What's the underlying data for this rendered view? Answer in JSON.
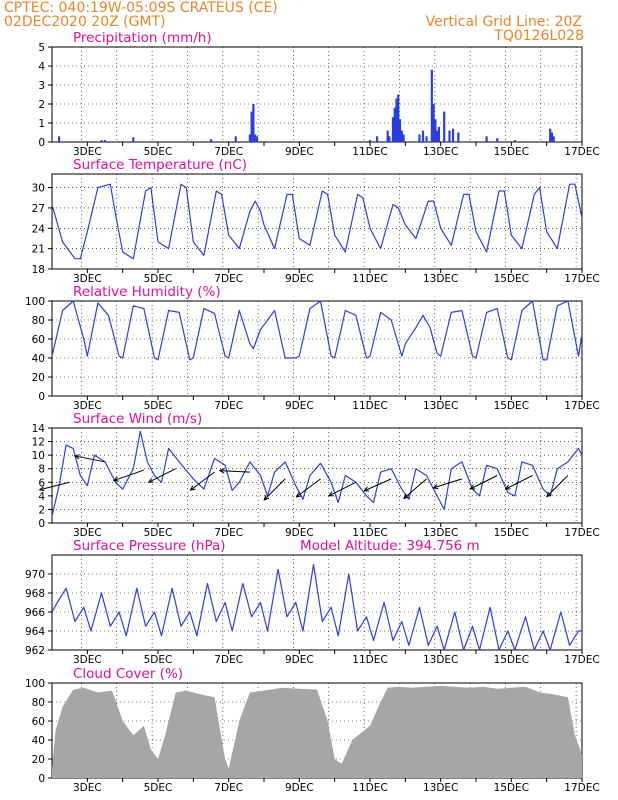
{
  "header": {
    "line1": "CPTEC:   040:19W-05:09S   CRATEUS (CE)",
    "line2": "02DEC2020 20Z (GMT)",
    "right1": "Vertical Grid Line: 20Z",
    "right2": "TQ0126L028"
  },
  "colors": {
    "header": "#e8862a",
    "title": "#e0109a",
    "line": "#2b3fe0",
    "cloud": "#a6a6a6"
  },
  "x_tick_labels": [
    "3DEC",
    "5DEC",
    "7DEC",
    "9DEC",
    "11DEC",
    "13DEC",
    "15DEC",
    "17DEC"
  ],
  "chart_data": [
    {
      "type": "bar",
      "title": "Precipitation (mm/h)",
      "ylim": [
        0,
        5
      ],
      "y_ticks": [
        0,
        1,
        2,
        3,
        4,
        5
      ],
      "x_unit": "day of December 2020",
      "xlim": [
        2.0,
        17.0
      ],
      "x": [
        2.2,
        3.4,
        3.5,
        4.3,
        6.5,
        7.2,
        7.6,
        7.65,
        7.7,
        7.75,
        7.8,
        11.0,
        11.2,
        11.5,
        11.55,
        11.65,
        11.7,
        11.75,
        11.8,
        11.85,
        11.9,
        11.95,
        12.4,
        12.5,
        12.6,
        12.75,
        12.8,
        12.85,
        12.9,
        12.95,
        13.1,
        13.25,
        13.35,
        13.5,
        14.3,
        14.6,
        15.1,
        16.1,
        16.15,
        16.2
      ],
      "values": [
        0.3,
        0.1,
        0.1,
        0.25,
        0.15,
        0.3,
        0.4,
        1.6,
        2.0,
        0.4,
        0.3,
        0.1,
        0.3,
        0.6,
        0.3,
        1.3,
        1.8,
        2.3,
        2.5,
        1.2,
        0.6,
        0.4,
        0.4,
        0.6,
        0.3,
        3.8,
        2.0,
        1.2,
        0.6,
        0.8,
        1.6,
        0.6,
        0.7,
        0.5,
        0.3,
        0.2,
        0.1,
        0.7,
        0.5,
        0.3
      ]
    },
    {
      "type": "line",
      "title": "Surface Temperature (nC)",
      "ylim": [
        18,
        32
      ],
      "y_ticks": [
        18,
        21,
        24,
        27,
        30
      ],
      "xlim": [
        2.0,
        17.0
      ],
      "x": [
        2.0,
        2.3,
        2.65,
        2.8,
        3.0,
        3.3,
        3.65,
        3.8,
        4.0,
        4.3,
        4.65,
        4.8,
        5.0,
        5.3,
        5.65,
        5.8,
        6.0,
        6.3,
        6.65,
        6.8,
        7.0,
        7.3,
        7.6,
        7.75,
        7.9,
        8.0,
        8.3,
        8.65,
        8.8,
        9.0,
        9.3,
        9.65,
        9.8,
        10.0,
        10.3,
        10.65,
        10.8,
        11.0,
        11.3,
        11.65,
        11.8,
        12.0,
        12.3,
        12.65,
        12.8,
        13.0,
        13.3,
        13.65,
        13.8,
        14.0,
        14.3,
        14.65,
        14.8,
        15.0,
        15.3,
        15.65,
        15.8,
        16.0,
        16.3,
        16.65,
        16.8,
        17.0
      ],
      "values": [
        27.5,
        22.0,
        19.5,
        19.5,
        23.5,
        30.0,
        30.5,
        26.0,
        20.5,
        19.5,
        29.5,
        30.0,
        22.0,
        21.0,
        30.5,
        30.0,
        22.0,
        20.0,
        29.5,
        29.0,
        23.0,
        21.0,
        26.5,
        28.0,
        26.5,
        24.5,
        21.0,
        29.0,
        29.0,
        22.5,
        21.5,
        29.5,
        29.0,
        23.0,
        20.5,
        29.0,
        28.5,
        24.0,
        21.0,
        27.5,
        27.0,
        24.5,
        22.5,
        28.0,
        28.0,
        24.0,
        21.5,
        29.0,
        29.0,
        23.5,
        20.5,
        29.5,
        29.5,
        23.0,
        21.0,
        29.0,
        30.0,
        23.5,
        21.0,
        30.5,
        30.5,
        25.5
      ]
    },
    {
      "type": "line",
      "title": "Relative Humidity (%)",
      "ylim": [
        0,
        100
      ],
      "y_ticks": [
        0,
        20,
        40,
        60,
        80,
        100
      ],
      "xlim": [
        2.0,
        17.0
      ],
      "x": [
        2.0,
        2.3,
        2.6,
        2.9,
        3.0,
        3.3,
        3.6,
        3.9,
        4.0,
        4.3,
        4.6,
        4.9,
        5.0,
        5.3,
        5.6,
        5.9,
        6.0,
        6.3,
        6.6,
        6.9,
        7.0,
        7.3,
        7.6,
        7.7,
        7.9,
        8.0,
        8.3,
        8.6,
        8.9,
        9.0,
        9.3,
        9.6,
        9.9,
        10.0,
        10.3,
        10.6,
        10.9,
        11.0,
        11.3,
        11.6,
        11.9,
        12.0,
        12.3,
        12.5,
        12.7,
        12.9,
        13.0,
        13.3,
        13.6,
        13.9,
        14.0,
        14.3,
        14.6,
        14.9,
        15.0,
        15.3,
        15.6,
        15.9,
        16.0,
        16.3,
        16.6,
        16.9,
        17.0
      ],
      "values": [
        42.0,
        90.0,
        100.0,
        60.0,
        42.0,
        98.0,
        85.0,
        42.0,
        40.0,
        95.0,
        92.0,
        40.0,
        38.0,
        90.0,
        88.0,
        38.0,
        40.0,
        92.0,
        87.0,
        42.0,
        40.0,
        90.0,
        55.0,
        50.0,
        70.0,
        75.0,
        90.0,
        40.0,
        40.0,
        42.0,
        92.0,
        100.0,
        42.0,
        40.0,
        90.0,
        85.0,
        40.0,
        42.0,
        88.0,
        80.0,
        42.0,
        55.0,
        72.0,
        85.0,
        72.0,
        45.0,
        42.0,
        88.0,
        90.0,
        42.0,
        40.0,
        88.0,
        92.0,
        40.0,
        38.0,
        90.0,
        100.0,
        38.0,
        38.0,
        95.0,
        100.0,
        42.0,
        65.0
      ]
    },
    {
      "type": "line",
      "title": "Surface Wind (m/s)",
      "ylim": [
        0,
        14
      ],
      "y_ticks": [
        0,
        2,
        4,
        6,
        8,
        10,
        12,
        14
      ],
      "xlim": [
        2.0,
        17.0
      ],
      "x": [
        2.0,
        2.2,
        2.4,
        2.6,
        2.8,
        3.0,
        3.2,
        3.5,
        3.8,
        4.0,
        4.3,
        4.5,
        4.7,
        4.9,
        5.1,
        5.3,
        5.6,
        6.0,
        6.3,
        6.6,
        6.9,
        7.1,
        7.3,
        7.6,
        7.9,
        8.1,
        8.3,
        8.6,
        8.9,
        9.1,
        9.3,
        9.6,
        9.9,
        10.1,
        10.3,
        10.6,
        10.9,
        11.1,
        11.3,
        11.6,
        11.9,
        12.1,
        12.3,
        12.6,
        12.9,
        13.1,
        13.3,
        13.6,
        13.9,
        14.1,
        14.3,
        14.6,
        14.9,
        15.1,
        15.3,
        15.6,
        15.9,
        16.1,
        16.3,
        16.6,
        16.9,
        17.0
      ],
      "values": [
        1.0,
        5.5,
        11.5,
        11.0,
        7.0,
        5.5,
        10.0,
        9.0,
        6.0,
        5.0,
        8.0,
        13.5,
        9.0,
        7.0,
        6.0,
        11.0,
        9.0,
        6.5,
        5.0,
        9.5,
        8.5,
        4.8,
        6.0,
        9.0,
        7.0,
        4.0,
        7.5,
        9.0,
        5.5,
        3.5,
        7.0,
        8.8,
        6.0,
        3.0,
        7.0,
        6.0,
        4.0,
        3.0,
        7.5,
        8.0,
        5.0,
        3.5,
        8.0,
        7.0,
        4.0,
        2.0,
        8.0,
        9.0,
        5.0,
        4.0,
        8.5,
        8.0,
        4.5,
        4.0,
        9.0,
        8.5,
        5.0,
        4.0,
        8.0,
        9.0,
        11.0,
        10.0
      ],
      "vectors": [
        {
          "x": 2.5,
          "y": 6.0,
          "u": -1.0,
          "v": -0.25
        },
        {
          "x": 3.5,
          "y": 9.0,
          "u": -1.0,
          "v": 0.2
        },
        {
          "x": 4.6,
          "y": 7.8,
          "u": -1.0,
          "v": -0.35
        },
        {
          "x": 5.5,
          "y": 8.0,
          "u": -0.9,
          "v": -0.45
        },
        {
          "x": 6.6,
          "y": 7.5,
          "u": -0.8,
          "v": -0.6
        },
        {
          "x": 7.6,
          "y": 7.5,
          "u": -1.0,
          "v": 0.05
        },
        {
          "x": 8.6,
          "y": 6.5,
          "u": -0.7,
          "v": -0.7
        },
        {
          "x": 9.6,
          "y": 6.5,
          "u": -0.8,
          "v": -0.6
        },
        {
          "x": 10.6,
          "y": 6.0,
          "u": -0.9,
          "v": -0.45
        },
        {
          "x": 11.6,
          "y": 6.5,
          "u": -0.9,
          "v": -0.4
        },
        {
          "x": 12.6,
          "y": 6.5,
          "u": -0.75,
          "v": -0.65
        },
        {
          "x": 13.6,
          "y": 6.5,
          "u": -0.95,
          "v": -0.3
        },
        {
          "x": 14.6,
          "y": 7.0,
          "u": -0.9,
          "v": -0.45
        },
        {
          "x": 15.6,
          "y": 7.0,
          "u": -0.9,
          "v": -0.45
        },
        {
          "x": 16.6,
          "y": 7.0,
          "u": -0.7,
          "v": -0.7
        }
      ]
    },
    {
      "type": "line",
      "title": "Surface Pressure (hPa)",
      "annotation": "Model Altitude: 394.756 m",
      "ylim": [
        962,
        972
      ],
      "y_ticks": [
        962,
        964,
        966,
        968,
        970
      ],
      "xlim": [
        2.0,
        17.0
      ],
      "x": [
        2.0,
        2.15,
        2.4,
        2.65,
        2.9,
        3.1,
        3.4,
        3.65,
        3.9,
        4.1,
        4.4,
        4.65,
        4.9,
        5.1,
        5.4,
        5.65,
        5.9,
        6.1,
        6.4,
        6.65,
        6.9,
        7.1,
        7.4,
        7.65,
        7.9,
        8.1,
        8.4,
        8.65,
        8.9,
        9.1,
        9.4,
        9.65,
        9.9,
        10.1,
        10.4,
        10.65,
        10.9,
        11.1,
        11.4,
        11.65,
        11.9,
        12.1,
        12.4,
        12.65,
        12.9,
        13.1,
        13.4,
        13.65,
        13.9,
        14.1,
        14.4,
        14.65,
        14.9,
        15.1,
        15.4,
        15.65,
        15.9,
        16.1,
        16.4,
        16.65,
        16.9,
        17.0
      ],
      "values": [
        966.0,
        967.0,
        968.5,
        965.0,
        966.5,
        964.0,
        968.0,
        964.5,
        966.0,
        963.5,
        968.5,
        964.5,
        966.0,
        963.5,
        968.5,
        964.5,
        966.0,
        963.5,
        969.0,
        965.0,
        967.0,
        964.0,
        969.0,
        965.5,
        967.0,
        964.0,
        970.5,
        965.5,
        967.0,
        964.0,
        971.0,
        965.0,
        966.5,
        963.5,
        970.0,
        964.0,
        965.5,
        963.0,
        967.0,
        963.0,
        965.0,
        962.5,
        966.5,
        962.5,
        964.5,
        962.0,
        966.0,
        962.0,
        964.5,
        962.0,
        966.5,
        962.0,
        964.0,
        962.0,
        965.5,
        962.0,
        964.0,
        962.0,
        966.0,
        962.5,
        964.0,
        964.0
      ]
    },
    {
      "type": "area",
      "title": "Cloud Cover (%)",
      "ylim": [
        0,
        100
      ],
      "y_ticks": [
        0,
        20,
        40,
        60,
        80,
        100
      ],
      "xlim": [
        2.0,
        17.0
      ],
      "x": [
        2.0,
        2.1,
        2.3,
        2.6,
        2.9,
        3.3,
        3.7,
        4.0,
        4.3,
        4.6,
        4.8,
        5.0,
        5.2,
        5.5,
        5.8,
        6.2,
        6.6,
        6.9,
        7.0,
        7.3,
        7.6,
        8.0,
        8.5,
        9.0,
        9.5,
        9.8,
        10.0,
        10.2,
        10.5,
        11.0,
        11.3,
        11.5,
        11.8,
        12.2,
        12.6,
        13.0,
        13.4,
        13.8,
        14.2,
        14.6,
        15.0,
        15.4,
        15.8,
        16.2,
        16.6,
        16.8,
        17.0
      ],
      "values": [
        10.0,
        50.0,
        75.0,
        93.0,
        95.0,
        90.0,
        92.0,
        60.0,
        45.0,
        55.0,
        30.0,
        20.0,
        45.0,
        90.0,
        92.0,
        88.0,
        85.0,
        20.0,
        10.0,
        60.0,
        90.0,
        92.0,
        95.0,
        94.0,
        93.0,
        60.0,
        20.0,
        15.0,
        40.0,
        55.0,
        80.0,
        95.0,
        96.0,
        95.0,
        96.0,
        97.0,
        96.0,
        95.0,
        96.0,
        94.0,
        95.0,
        96.0,
        90.0,
        88.0,
        85.0,
        45.0,
        25.0
      ]
    }
  ]
}
